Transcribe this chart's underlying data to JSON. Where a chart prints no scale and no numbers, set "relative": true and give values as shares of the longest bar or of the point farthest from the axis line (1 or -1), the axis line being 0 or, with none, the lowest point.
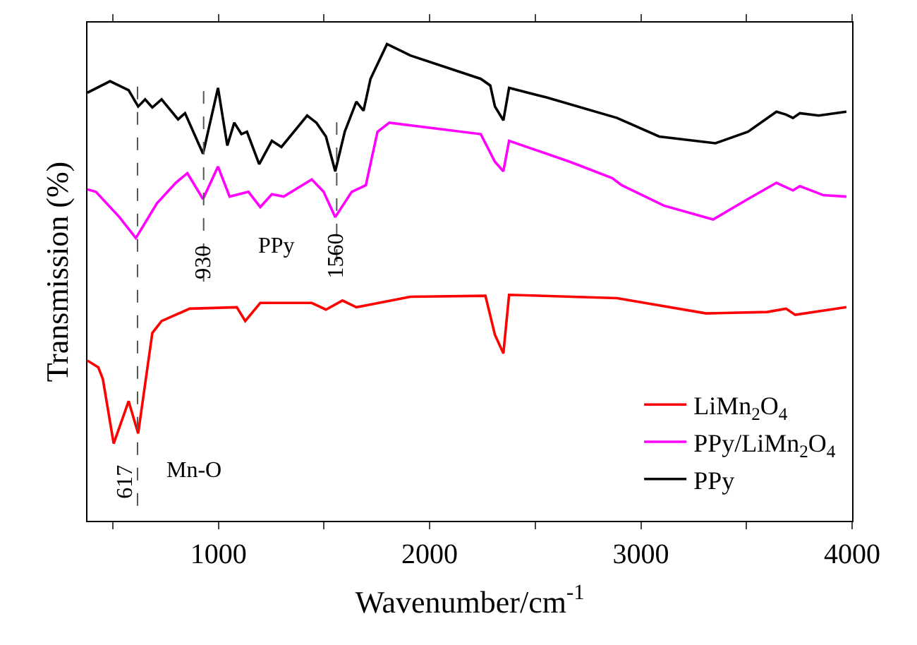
{
  "chart_data": {
    "type": "line",
    "relative": true,
    "xlabel": "Wavenumber/cm$^{-1}$",
    "ylabel": "Transmission (%)",
    "xlim": [
      380,
      4000
    ],
    "xticks": [
      {
        "value": 500,
        "label": null
      },
      1000,
      {
        "value": 1500,
        "label": null
      },
      2000,
      {
        "value": 2500,
        "label": null
      },
      3000,
      {
        "value": 3500,
        "label": null
      },
      4000
    ],
    "legend": "bottom right",
    "line_style": "solid",
    "marker": "none",
    "series": [
      {
        "name": "LiMn$_{2}$O$_{4}$",
        "color": "#ff0000",
        "x": [
          380,
          431,
          453,
          504,
          575,
          620,
          687,
          731,
          864,
          1087,
          1127,
          1198,
          1442,
          1509,
          1587,
          1653,
          1909,
          2264,
          2309,
          2349,
          2376,
          2887,
          3309,
          3598,
          3687,
          3731,
          3973
        ],
        "values": [
          0.336,
          0.322,
          0.297,
          0.162,
          0.251,
          0.183,
          0.394,
          0.419,
          0.445,
          0.448,
          0.419,
          0.457,
          0.457,
          0.443,
          0.462,
          0.448,
          0.47,
          0.472,
          0.39,
          0.351,
          0.474,
          0.467,
          0.435,
          0.438,
          0.445,
          0.432,
          0.448
        ]
      },
      {
        "name": "PPy/LiMn$_{2}$O$_{4}$",
        "color": "#ff00ff",
        "x": [
          380,
          420,
          531,
          609,
          709,
          798,
          853,
          927,
          998,
          1053,
          1142,
          1198,
          1253,
          1309,
          1442,
          1498,
          1553,
          1631,
          1698,
          1753,
          1809,
          2242,
          2309,
          2349,
          2376,
          2664,
          2864,
          2909,
          3109,
          3342,
          3507,
          3642,
          3720,
          3753,
          3864,
          3973
        ],
        "values": [
          0.695,
          0.69,
          0.637,
          0.593,
          0.666,
          0.709,
          0.729,
          0.675,
          0.743,
          0.68,
          0.69,
          0.658,
          0.685,
          0.68,
          0.716,
          0.69,
          0.637,
          0.69,
          0.704,
          0.816,
          0.835,
          0.811,
          0.753,
          0.733,
          0.797,
          0.753,
          0.719,
          0.704,
          0.661,
          0.632,
          0.675,
          0.709,
          0.693,
          0.702,
          0.683,
          0.68
        ]
      },
      {
        "name": "PPy",
        "color": "#000000",
        "x": [
          380,
          487,
          575,
          620,
          653,
          687,
          731,
          809,
          842,
          927,
          998,
          1042,
          1075,
          1109,
          1135,
          1193,
          1253,
          1298,
          1420,
          1464,
          1509,
          1553,
          1598,
          1653,
          1687,
          1720,
          1798,
          1909,
          2242,
          2287,
          2309,
          2349,
          2376,
          2553,
          2887,
          3087,
          3353,
          3507,
          3642,
          3687,
          3720,
          3753,
          3842,
          3973
        ],
        "values": [
          0.898,
          0.922,
          0.903,
          0.869,
          0.884,
          0.867,
          0.884,
          0.842,
          0.855,
          0.77,
          0.908,
          0.787,
          0.835,
          0.811,
          0.816,
          0.748,
          0.797,
          0.784,
          0.85,
          0.835,
          0.806,
          0.733,
          0.816,
          0.879,
          0.86,
          0.927,
          1,
          0.976,
          0.927,
          0.913,
          0.869,
          0.84,
          0.908,
          0.888,
          0.845,
          0.806,
          0.792,
          0.816,
          0.858,
          0.852,
          0.845,
          0.855,
          0.85,
          0.858
        ]
      }
    ],
    "ref_lines": [
      {
        "axis": "x",
        "value": 617,
        "label": "617",
        "color": "#555555",
        "line_style": "dashed"
      },
      {
        "axis": "x",
        "value": 930,
        "label": "930",
        "color": "#555555",
        "line_style": "dashed"
      },
      {
        "axis": "x",
        "value": 1560,
        "label": "1560",
        "color": "#555555",
        "line_style": "dashed"
      }
    ],
    "annotations": [
      "Mn-O",
      "PPy"
    ]
  }
}
